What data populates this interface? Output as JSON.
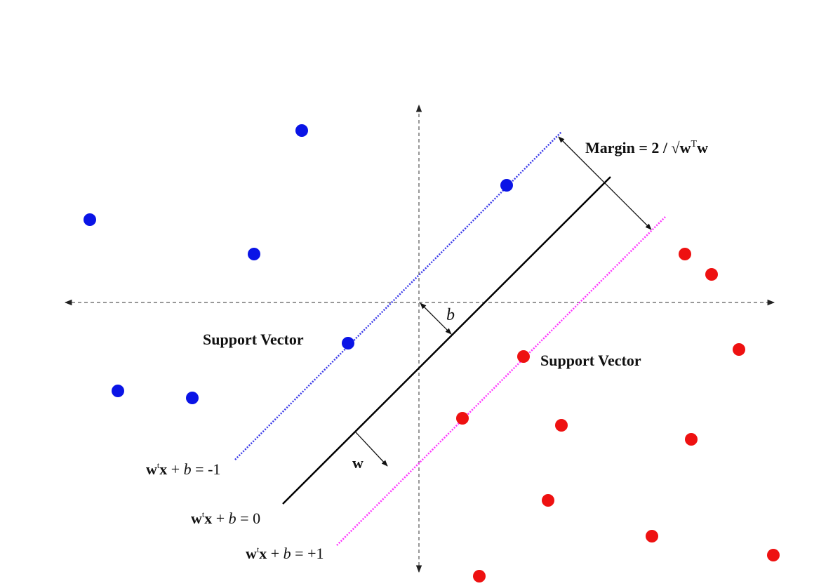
{
  "colors": {
    "negative_class": "#0a14e6",
    "positive_class": "#ee1111",
    "negative_margin_line": "#3a3ae8",
    "positive_margin_line": "#ff33ff",
    "hyperplane": "#000000",
    "axes": "#777777"
  },
  "labels": {
    "margin_prefix": "Margin = 2 / ",
    "margin_sqrt": "√",
    "margin_w": "w",
    "margin_T": "T",
    "margin_w2": "w",
    "b": "b",
    "w": "w",
    "support_vector_left": "Support Vector",
    "support_vector_right": "Support Vector",
    "eq_negative": {
      "w": "w",
      "t": "t",
      "x": "x",
      "plus": " + ",
      "b": "b",
      "rest": " = -1"
    },
    "eq_zero": {
      "w": "w",
      "t": "t",
      "x": "x",
      "plus": " + ",
      "b": "b",
      "rest": " = 0"
    },
    "eq_positive": {
      "w": "w",
      "t": "t",
      "x": "x",
      "plus": " + ",
      "b": "b",
      "rest": " = +1"
    }
  }
}
